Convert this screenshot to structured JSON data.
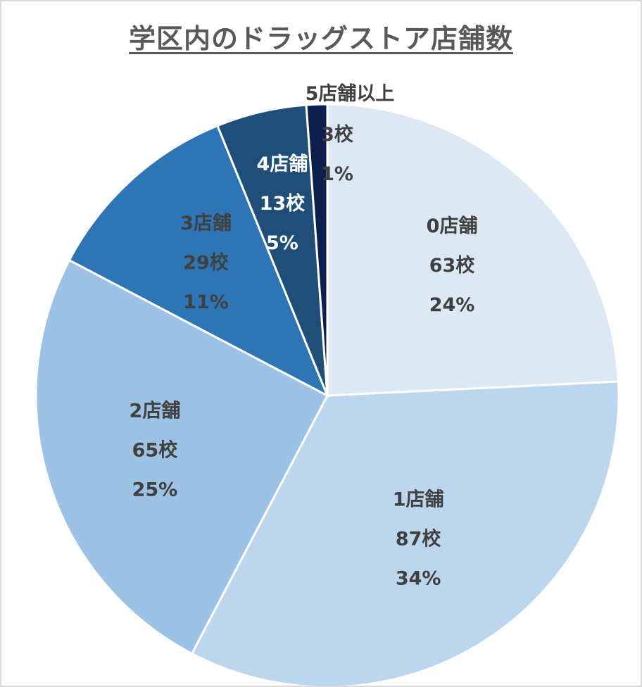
{
  "chart_data": {
    "type": "pie",
    "title": "学区内のドラッグストア店舗数",
    "categories": [
      "0店舗",
      "1店舗",
      "2店舗",
      "3店舗",
      "4店舗",
      "5店舗以上"
    ],
    "values": [
      63,
      87,
      65,
      29,
      13,
      3
    ],
    "value_labels": [
      "63校",
      "87校",
      "65校",
      "29校",
      "13校",
      "3校"
    ],
    "percent_labels": [
      "24%",
      "34%",
      "25%",
      "11%",
      "5%",
      "1%"
    ],
    "colors": [
      "#dde8f5",
      "#bcd6ee",
      "#9cc3e5",
      "#2e75b6",
      "#1f4e79",
      "#0c1f4d"
    ],
    "start_angle_deg": 0,
    "direction": "clockwise"
  }
}
